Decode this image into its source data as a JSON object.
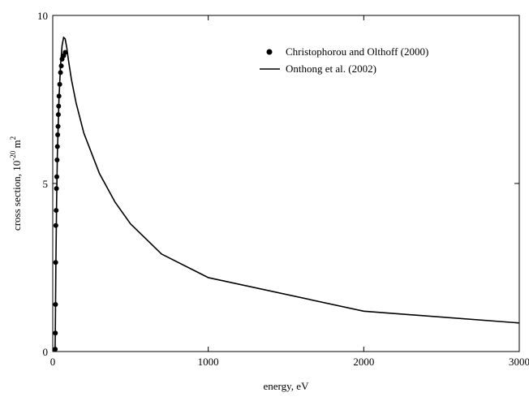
{
  "chart_data": {
    "type": "line",
    "title": "",
    "xlabel": "energy, eV",
    "ylabel": "cross section, 10",
    "ylabel_exp": "-20",
    "ylabel_unit": "m",
    "ylabel_unit_exp": "2",
    "xlim": [
      0,
      3000
    ],
    "ylim": [
      0,
      10
    ],
    "x_ticks": [
      0,
      1000,
      2000,
      3000
    ],
    "x_tick_labels": [
      "0",
      "1000",
      "2000",
      "3000"
    ],
    "y_ticks": [
      0,
      5,
      10
    ],
    "y_tick_labels": [
      "0",
      "5",
      "10"
    ],
    "grid": false,
    "legend_position": "top-right",
    "series": [
      {
        "name": "Christophorou and Olthoff (2000)",
        "style": "markers",
        "color": "#000000",
        "x": [
          16,
          17,
          18,
          19,
          20,
          22,
          24,
          26,
          28,
          30,
          32,
          34,
          36,
          38,
          40,
          45,
          50,
          55,
          60,
          70,
          80
        ],
        "y": [
          0.07,
          0.55,
          1.4,
          2.65,
          3.75,
          4.2,
          4.85,
          5.2,
          5.7,
          6.1,
          6.45,
          6.7,
          7.05,
          7.3,
          7.6,
          7.95,
          8.3,
          8.5,
          8.7,
          8.8,
          8.9
        ]
      },
      {
        "name": "Onthong et al. (2002)",
        "style": "line",
        "color": "#000000",
        "x": [
          15,
          17,
          20,
          25,
          30,
          40,
          50,
          60,
          70,
          80,
          90,
          100,
          120,
          150,
          200,
          300,
          400,
          500,
          700,
          1000,
          2000,
          3000
        ],
        "y": [
          0.0,
          0.8,
          2.5,
          4.5,
          5.9,
          7.5,
          8.5,
          9.1,
          9.35,
          9.3,
          9.05,
          8.7,
          8.1,
          7.4,
          6.5,
          5.3,
          4.45,
          3.8,
          2.9,
          2.2,
          1.2,
          0.85
        ]
      }
    ]
  }
}
